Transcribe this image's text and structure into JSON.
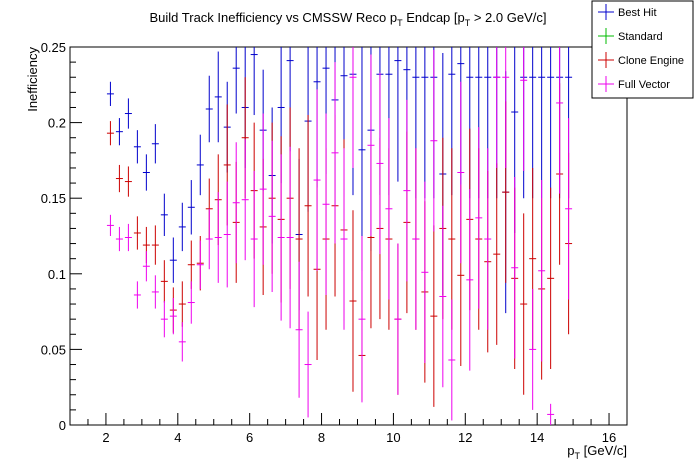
{
  "chart_data": {
    "type": "scatter",
    "title": "Build Track Inefficiency vs CMSSW Reco p",
    "title_sub": "T",
    "title_mid": " Endcap [p",
    "title_sub2": "T",
    "title_end": " > 2.0 GeV/c]",
    "xlabel": "p",
    "xlabel_sub": "T",
    "xlabel_end": " [GeV/c]",
    "ylabel": "Inefficiency",
    "xlim": [
      1,
      16.5
    ],
    "ylim": [
      0,
      0.25
    ],
    "x_ticks": [
      2,
      4,
      6,
      8,
      10,
      12,
      14,
      16
    ],
    "y_ticks": [
      0,
      0.05,
      0.1,
      0.15,
      0.2,
      0.25
    ],
    "y_tick_labels": [
      "0",
      "0.05",
      "0.1",
      "0.15",
      "0.2",
      "0.25"
    ],
    "x_bin_half_width": 0.125,
    "legend_position": "top-right",
    "series": [
      {
        "name": "Best Hit",
        "color": "#0000cc",
        "points": [
          [
            2.125,
            0.219,
            0.008
          ],
          [
            2.375,
            0.194,
            0.009
          ],
          [
            2.625,
            0.206,
            0.01
          ],
          [
            2.875,
            0.184,
            0.011
          ],
          [
            3.125,
            0.167,
            0.012
          ],
          [
            3.375,
            0.186,
            0.013
          ],
          [
            3.625,
            0.139,
            0.014
          ],
          [
            3.875,
            0.109,
            0.015
          ],
          [
            4.125,
            0.131,
            0.016
          ],
          [
            4.375,
            0.144,
            0.018
          ],
          [
            4.625,
            0.172,
            0.02
          ],
          [
            4.875,
            0.209,
            0.022
          ],
          [
            5.125,
            0.217,
            0.03
          ],
          [
            5.375,
            0.197,
            0.03
          ],
          [
            5.625,
            0.236,
            0.03
          ],
          [
            5.875,
            0.21,
            0.04
          ],
          [
            6.125,
            0.245,
            0.04
          ],
          [
            6.375,
            0.195,
            0.04
          ],
          [
            6.625,
            0.165,
            0.045
          ],
          [
            6.875,
            0.21,
            0.05
          ],
          [
            7.125,
            0.241,
            0.06
          ],
          [
            7.375,
            0.126,
            0.05
          ],
          [
            7.625,
            0.201,
            0.06
          ],
          [
            7.875,
            0.227,
            0.07
          ],
          [
            8.125,
            0.236,
            0.07
          ],
          [
            8.375,
            0.215,
            0.07
          ],
          [
            8.625,
            0.231,
            0.08
          ],
          [
            8.875,
            0.232,
            0.08
          ],
          [
            9.125,
            0.182,
            0.08
          ],
          [
            9.375,
            0.195,
            0.08
          ],
          [
            9.625,
            0.232,
            0.08
          ],
          [
            9.875,
            0.232,
            0.08
          ],
          [
            10.125,
            0.241,
            0.08
          ],
          [
            10.375,
            0.235,
            0.08
          ],
          [
            10.625,
            0.23,
            0.08
          ],
          [
            10.875,
            0.23,
            0.08
          ],
          [
            11.125,
            0.23,
            0.08
          ],
          [
            11.375,
            0.166,
            0.08
          ],
          [
            11.625,
            0.232,
            0.08
          ],
          [
            11.875,
            0.239,
            0.08
          ],
          [
            12.125,
            0.23,
            0.08
          ],
          [
            12.375,
            0.23,
            0.08
          ],
          [
            12.625,
            0.23,
            0.08
          ],
          [
            12.875,
            0.23,
            0.08
          ],
          [
            13.125,
            0.154,
            0.08
          ],
          [
            13.375,
            0.207,
            0.08
          ],
          [
            13.625,
            0.23,
            0.08
          ],
          [
            13.875,
            0.23,
            0.08
          ],
          [
            14.125,
            0.23,
            0.08
          ],
          [
            14.375,
            0.23,
            0.08
          ],
          [
            14.625,
            0.23,
            0.08
          ],
          [
            14.875,
            0.23,
            0.08
          ]
        ]
      },
      {
        "name": "Standard",
        "color": "#00bb00",
        "points": []
      },
      {
        "name": "Clone Engine",
        "color": "#cc0000",
        "points": [
          [
            2.125,
            0.193,
            0.008
          ],
          [
            2.375,
            0.163,
            0.009
          ],
          [
            2.625,
            0.161,
            0.01
          ],
          [
            2.875,
            0.127,
            0.011
          ],
          [
            3.125,
            0.119,
            0.012
          ],
          [
            3.375,
            0.119,
            0.013
          ],
          [
            3.625,
            0.095,
            0.014
          ],
          [
            3.875,
            0.076,
            0.015
          ],
          [
            4.125,
            0.08,
            0.015
          ],
          [
            4.375,
            0.106,
            0.016
          ],
          [
            4.625,
            0.107,
            0.018
          ],
          [
            4.875,
            0.143,
            0.02
          ],
          [
            5.125,
            0.149,
            0.03
          ],
          [
            5.375,
            0.172,
            0.04
          ],
          [
            5.625,
            0.134,
            0.04
          ],
          [
            5.875,
            0.19,
            0.04
          ],
          [
            6.125,
            0.155,
            0.045
          ],
          [
            6.375,
            0.131,
            0.045
          ],
          [
            6.625,
            0.15,
            0.05
          ],
          [
            6.875,
            0.136,
            0.055
          ],
          [
            7.125,
            0.15,
            0.06
          ],
          [
            7.375,
            0.123,
            0.06
          ],
          [
            7.625,
            0.145,
            0.06
          ],
          [
            7.875,
            0.103,
            0.06
          ],
          [
            8.125,
            0.123,
            0.06
          ],
          [
            8.375,
            0.145,
            0.06
          ],
          [
            8.625,
            0.129,
            0.06
          ],
          [
            8.875,
            0.082,
            0.06
          ],
          [
            9.125,
            0.046,
            0.03
          ],
          [
            9.375,
            0.124,
            0.06
          ],
          [
            9.625,
            0.13,
            0.06
          ],
          [
            9.875,
            0.123,
            0.06
          ],
          [
            10.125,
            0.07,
            0.05
          ],
          [
            10.375,
            0.134,
            0.06
          ],
          [
            10.625,
            0.123,
            0.06
          ],
          [
            10.875,
            0.088,
            0.06
          ],
          [
            11.125,
            0.072,
            0.06
          ],
          [
            11.375,
            0.13,
            0.06
          ],
          [
            11.625,
            0.123,
            0.06
          ],
          [
            11.875,
            0.099,
            0.06
          ],
          [
            12.125,
            0.136,
            0.06
          ],
          [
            12.375,
            0.123,
            0.06
          ],
          [
            12.625,
            0.108,
            0.06
          ],
          [
            12.875,
            0.113,
            0.06
          ],
          [
            13.125,
            0.154,
            0.06
          ],
          [
            13.375,
            0.097,
            0.06
          ],
          [
            13.625,
            0.08,
            0.06
          ],
          [
            13.875,
            0.11,
            0.06
          ],
          [
            14.125,
            0.09,
            0.06
          ],
          [
            14.375,
            0.097,
            0.06
          ],
          [
            14.625,
            0.166,
            0.06
          ],
          [
            14.875,
            0.12,
            0.06
          ]
        ]
      },
      {
        "name": "Full Vector",
        "color": "#ee00ee",
        "points": [
          [
            2.125,
            0.132,
            0.007
          ],
          [
            2.375,
            0.123,
            0.008
          ],
          [
            2.625,
            0.124,
            0.009
          ],
          [
            2.875,
            0.086,
            0.009
          ],
          [
            3.125,
            0.105,
            0.01
          ],
          [
            3.375,
            0.088,
            0.011
          ],
          [
            3.625,
            0.07,
            0.012
          ],
          [
            3.875,
            0.072,
            0.012
          ],
          [
            4.125,
            0.055,
            0.013
          ],
          [
            4.375,
            0.081,
            0.014
          ],
          [
            4.625,
            0.106,
            0.016
          ],
          [
            4.875,
            0.123,
            0.02
          ],
          [
            5.125,
            0.124,
            0.03
          ],
          [
            5.375,
            0.126,
            0.035
          ],
          [
            5.625,
            0.147,
            0.04
          ],
          [
            5.875,
            0.149,
            0.04
          ],
          [
            6.125,
            0.123,
            0.045
          ],
          [
            6.375,
            0.156,
            0.05
          ],
          [
            6.625,
            0.138,
            0.05
          ],
          [
            6.875,
            0.124,
            0.055
          ],
          [
            7.125,
            0.124,
            0.06
          ],
          [
            7.375,
            0.063,
            0.045
          ],
          [
            7.625,
            0.04,
            0.035
          ],
          [
            7.875,
            0.162,
            0.06
          ],
          [
            8.125,
            0.146,
            0.06
          ],
          [
            8.375,
            0.18,
            0.06
          ],
          [
            8.625,
            0.123,
            0.06
          ],
          [
            8.875,
            0.23,
            0.06
          ],
          [
            9.125,
            0.07,
            0.055
          ],
          [
            9.375,
            0.185,
            0.06
          ],
          [
            9.625,
            0.173,
            0.06
          ],
          [
            9.875,
            0.143,
            0.06
          ],
          [
            10.125,
            0.07,
            0.05
          ],
          [
            10.375,
            0.155,
            0.06
          ],
          [
            10.625,
            0.123,
            0.06
          ],
          [
            10.875,
            0.101,
            0.06
          ],
          [
            11.125,
            0.188,
            0.06
          ],
          [
            11.375,
            0.085,
            0.06
          ],
          [
            11.625,
            0.043,
            0.04
          ],
          [
            11.875,
            0.167,
            0.06
          ],
          [
            12.125,
            0.096,
            0.06
          ],
          [
            12.375,
            0.137,
            0.06
          ],
          [
            12.625,
            0.123,
            0.06
          ],
          [
            12.875,
            0.23,
            0.06
          ],
          [
            13.125,
            0.23,
            0.06
          ],
          [
            13.375,
            0.104,
            0.06
          ],
          [
            13.625,
            0.228,
            0.06
          ],
          [
            13.875,
            0.05,
            0.04
          ],
          [
            14.125,
            0.102,
            0.06
          ],
          [
            14.375,
            0.007,
            0.007
          ],
          [
            14.625,
            0.213,
            0.06
          ],
          [
            14.875,
            0.143,
            0.06
          ]
        ]
      }
    ]
  }
}
